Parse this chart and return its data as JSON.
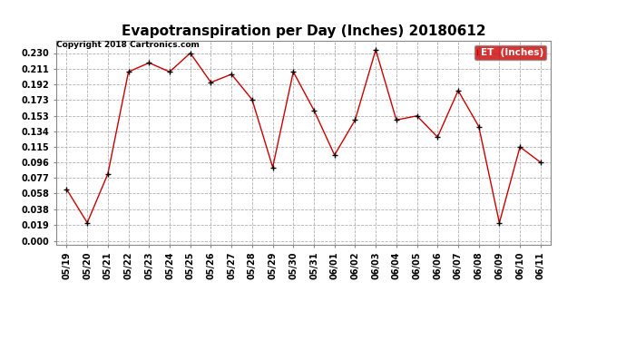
{
  "title": "Evapotranspiration per Day (Inches) 20180612",
  "copyright": "Copyright 2018 Cartronics.com",
  "legend_label": "ET  (Inches)",
  "dates": [
    "05/19",
    "05/20",
    "05/21",
    "05/22",
    "05/23",
    "05/24",
    "05/25",
    "05/26",
    "05/27",
    "05/28",
    "05/29",
    "05/30",
    "05/31",
    "06/01",
    "06/02",
    "06/03",
    "06/04",
    "06/05",
    "06/06",
    "06/07",
    "06/08",
    "06/09",
    "06/10",
    "06/11"
  ],
  "values": [
    0.063,
    0.022,
    0.082,
    0.207,
    0.218,
    0.207,
    0.23,
    0.194,
    0.204,
    0.173,
    0.09,
    0.207,
    0.16,
    0.105,
    0.148,
    0.234,
    0.148,
    0.153,
    0.127,
    0.184,
    0.14,
    0.022,
    0.115,
    0.096
  ],
  "yticks": [
    0.0,
    0.019,
    0.038,
    0.058,
    0.077,
    0.096,
    0.115,
    0.134,
    0.153,
    0.173,
    0.192,
    0.211,
    0.23
  ],
  "ylim": [
    -0.005,
    0.245
  ],
  "line_color": "#cc0000",
  "marker_color": "#000000",
  "legend_bg": "#cc0000",
  "legend_text_color": "#ffffff",
  "background_color": "#ffffff",
  "grid_color": "#b0b0b0",
  "title_fontsize": 11,
  "copyright_fontsize": 6.5,
  "tick_fontsize": 7,
  "legend_fontsize": 7.5
}
